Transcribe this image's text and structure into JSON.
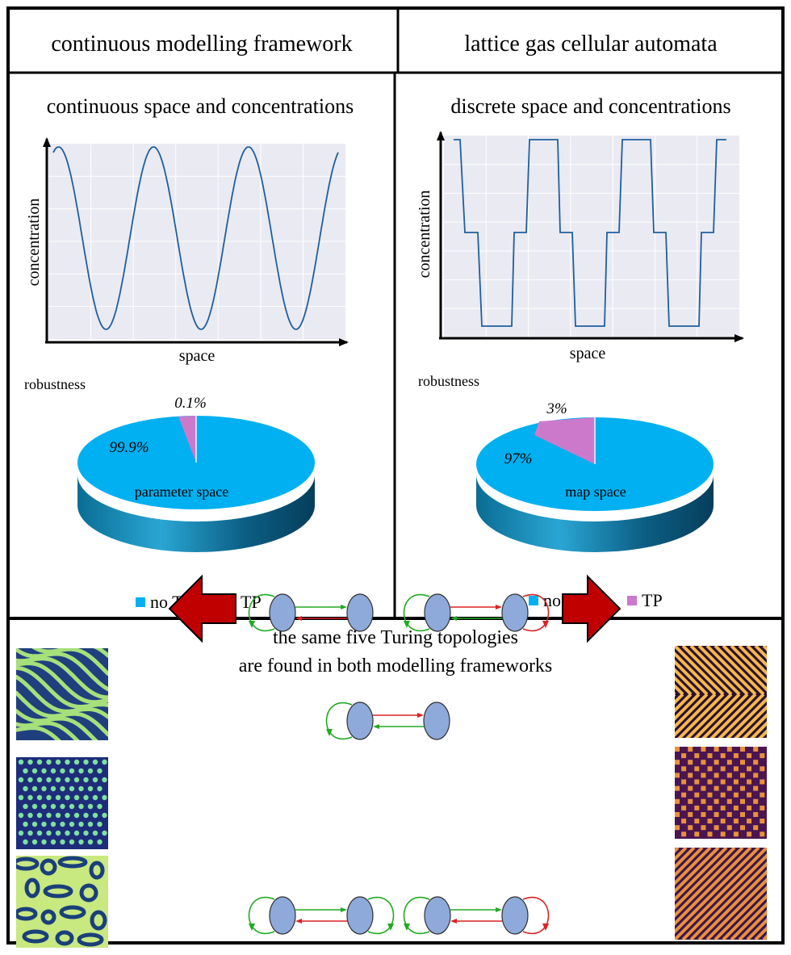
{
  "header": {
    "left_title": "continuous modelling framework",
    "right_title": "lattice gas cellular automata"
  },
  "left_panel": {
    "subtitle": "continuous space and concentrations",
    "ylabel": "concentration",
    "xlabel": "space",
    "robustness_label": "robustness",
    "pie": {
      "center_label": "parameter space",
      "slices": [
        {
          "name": "no TP",
          "value": 99.9,
          "label": "99.9%",
          "color": "#00b0f0"
        },
        {
          "name": "TP",
          "value": 0.1,
          "label": "0.1%",
          "color": "#cc79cc"
        }
      ]
    },
    "legend": [
      {
        "name": "no TP",
        "color": "#00b0f0"
      },
      {
        "name": "TP",
        "color": "#cc79cc"
      }
    ]
  },
  "right_panel": {
    "subtitle": "discrete space and concentrations",
    "ylabel": "concentration",
    "xlabel": "space",
    "robustness_label": "robustness",
    "pie": {
      "center_label": "map space",
      "slices": [
        {
          "name": "no TP",
          "value": 97,
          "label": "97%",
          "color": "#00b0f0"
        },
        {
          "name": "TP",
          "value": 3,
          "label": "3%",
          "color": "#cc79cc"
        }
      ]
    },
    "legend": [
      {
        "name": "no TP",
        "color": "#00b0f0"
      },
      {
        "name": "TP",
        "color": "#cc79cc"
      }
    ]
  },
  "bottom": {
    "caption_line1": "the same five Turing topologies",
    "caption_line2": "are found in both modelling frameworks",
    "left_patterns": [
      "labyrinth stripes",
      "spots",
      "mixed spots and stripes"
    ],
    "right_patterns": [
      "labyrinth stripes",
      "checkerboard",
      "diagonal stripes"
    ],
    "node_color": "#8eaadb",
    "activation_color": "#22aa22",
    "inhibition_color": "#dd2222",
    "arrow_color": "#c00000"
  }
}
